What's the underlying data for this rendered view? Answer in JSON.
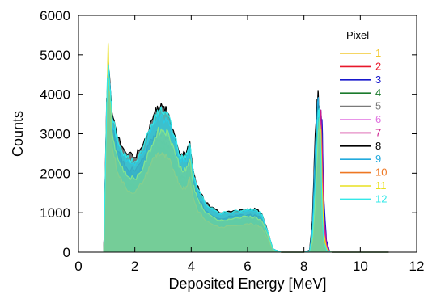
{
  "chart_data": {
    "type": "line",
    "title": "",
    "xlabel": "Deposited Energy [MeV]",
    "ylabel": "Counts",
    "xlim": [
      0,
      12
    ],
    "ylim": [
      0,
      6000
    ],
    "xticks": [
      0,
      2,
      4,
      6,
      8,
      10,
      12
    ],
    "yticks": [
      0,
      1000,
      2000,
      3000,
      4000,
      5000,
      6000
    ],
    "grid": false,
    "legend": {
      "title": "Pixel",
      "position": "top-right"
    },
    "x": [
      0.9,
      1.0,
      1.05,
      1.1,
      1.2,
      1.4,
      1.7,
      2.0,
      2.3,
      2.6,
      2.8,
      3.0,
      3.2,
      3.4,
      3.6,
      3.8,
      3.95,
      4.05,
      4.2,
      4.5,
      5.0,
      5.5,
      6.0,
      6.3,
      6.5,
      6.7,
      6.9,
      7.2,
      7.6,
      8.0,
      8.2,
      8.3,
      8.4,
      8.5,
      8.55,
      8.6,
      8.65,
      8.7,
      8.8,
      8.9,
      9.0,
      9.5,
      10.0,
      10.5,
      11.0
    ],
    "series": [
      {
        "name": "1",
        "color": "#f2c830",
        "values": [
          0,
          3000,
          5100,
          3800,
          2500,
          1800,
          1400,
          1300,
          1500,
          2000,
          2200,
          2150,
          2050,
          1800,
          1500,
          1350,
          1650,
          1300,
          1000,
          700,
          500,
          550,
          600,
          580,
          520,
          300,
          50,
          0,
          0,
          0,
          30,
          400,
          1800,
          3400,
          3100,
          2000,
          700,
          250,
          60,
          10,
          0,
          0,
          0,
          0,
          0
        ]
      },
      {
        "name": "2",
        "color": "#e8182a",
        "values": [
          0,
          3200,
          4700,
          4000,
          2700,
          2000,
          1600,
          1500,
          1800,
          2300,
          2500,
          2450,
          2350,
          2050,
          1700,
          1600,
          1900,
          1450,
          1100,
          800,
          600,
          650,
          700,
          680,
          600,
          350,
          60,
          0,
          0,
          0,
          20,
          200,
          1000,
          2600,
          3200,
          3500,
          2400,
          800,
          150,
          20,
          0,
          0,
          0,
          0,
          0
        ]
      },
      {
        "name": "3",
        "color": "#1818cc",
        "values": [
          0,
          3500,
          4900,
          4100,
          3000,
          2300,
          1900,
          1800,
          2100,
          2650,
          2850,
          2800,
          2700,
          2350,
          1950,
          1850,
          2150,
          1650,
          1300,
          950,
          750,
          800,
          850,
          830,
          740,
          420,
          70,
          0,
          0,
          0,
          20,
          200,
          900,
          2400,
          3100,
          3600,
          3200,
          1400,
          300,
          40,
          0,
          0,
          0,
          0,
          0
        ]
      },
      {
        "name": "4",
        "color": "#1a7a2c",
        "values": [
          0,
          3300,
          4500,
          3900,
          2800,
          2150,
          1750,
          1650,
          1950,
          2450,
          2650,
          2600,
          2500,
          2200,
          1800,
          1700,
          2000,
          1550,
          1200,
          870,
          680,
          730,
          780,
          760,
          680,
          390,
          60,
          0,
          0,
          0,
          40,
          500,
          2200,
          3900,
          3500,
          2200,
          800,
          250,
          50,
          10,
          0,
          0,
          0,
          0,
          0
        ]
      },
      {
        "name": "5",
        "color": "#7a7a7a",
        "values": [
          0,
          3400,
          4600,
          4000,
          2900,
          2250,
          1850,
          1750,
          2050,
          2550,
          2750,
          2700,
          2600,
          2280,
          1880,
          1780,
          2080,
          1600,
          1250,
          900,
          710,
          760,
          810,
          790,
          710,
          400,
          60,
          0,
          0,
          0,
          30,
          350,
          1500,
          3300,
          3700,
          2800,
          1100,
          300,
          60,
          10,
          0,
          0,
          0,
          0,
          0
        ]
      },
      {
        "name": "6",
        "color": "#e070e0",
        "values": [
          0,
          3600,
          4800,
          4200,
          3100,
          2450,
          2050,
          1950,
          2250,
          2750,
          2950,
          2900,
          2800,
          2450,
          2050,
          1950,
          2250,
          1750,
          1380,
          1000,
          800,
          850,
          900,
          880,
          790,
          450,
          70,
          0,
          0,
          0,
          20,
          250,
          1100,
          2700,
          3400,
          3300,
          2000,
          700,
          150,
          20,
          0,
          0,
          0,
          0,
          0
        ]
      },
      {
        "name": "7",
        "color": "#cc1a8c",
        "values": [
          0,
          3700,
          4700,
          4300,
          3200,
          2550,
          2150,
          2050,
          2350,
          2850,
          3050,
          3000,
          2900,
          2550,
          2150,
          2050,
          2350,
          1850,
          1450,
          1050,
          850,
          900,
          950,
          930,
          840,
          480,
          70,
          0,
          0,
          0,
          20,
          220,
          1000,
          2500,
          3200,
          3600,
          2600,
          1000,
          200,
          30,
          0,
          0,
          0,
          0,
          0
        ]
      },
      {
        "name": "8",
        "color": "#000000",
        "values": [
          0,
          3900,
          4600,
          4500,
          3500,
          2900,
          2500,
          2400,
          2750,
          3350,
          3700,
          3650,
          3500,
          3000,
          2500,
          2450,
          2800,
          2150,
          1700,
          1250,
          1000,
          1050,
          1100,
          1080,
          980,
          560,
          80,
          0,
          0,
          0,
          50,
          800,
          3000,
          4100,
          3200,
          1800,
          600,
          200,
          40,
          10,
          0,
          0,
          0,
          0,
          0
        ]
      },
      {
        "name": "9",
        "color": "#22aadd",
        "values": [
          0,
          3700,
          4500,
          4300,
          3300,
          2700,
          2300,
          2200,
          2550,
          3150,
          3450,
          3400,
          3300,
          2850,
          2350,
          2300,
          2650,
          2050,
          1620,
          1200,
          950,
          1000,
          1050,
          1030,
          930,
          530,
          80,
          0,
          0,
          0,
          40,
          600,
          2600,
          3900,
          3300,
          2100,
          700,
          220,
          40,
          10,
          0,
          0,
          0,
          0,
          0
        ]
      },
      {
        "name": "10",
        "color": "#ee7722",
        "values": [
          0,
          3100,
          4400,
          3850,
          2650,
          2000,
          1600,
          1500,
          1800,
          2300,
          2500,
          2450,
          2350,
          2050,
          1700,
          1600,
          1900,
          1450,
          1100,
          800,
          620,
          670,
          720,
          700,
          630,
          360,
          60,
          0,
          0,
          0,
          20,
          300,
          1400,
          3000,
          3300,
          2700,
          1200,
          350,
          70,
          10,
          0,
          0,
          0,
          0,
          0
        ]
      },
      {
        "name": "11",
        "color": "#e8e020",
        "values": [
          0,
          3600,
          5300,
          4200,
          3000,
          2350,
          1950,
          1850,
          2150,
          2700,
          3050,
          3100,
          3000,
          2600,
          2150,
          2050,
          2350,
          1800,
          1400,
          1000,
          800,
          850,
          900,
          880,
          790,
          450,
          70,
          0,
          0,
          0,
          20,
          250,
          1200,
          2900,
          3400,
          3100,
          1600,
          500,
          100,
          20,
          0,
          0,
          0,
          0,
          0
        ]
      },
      {
        "name": "12",
        "color": "#33e8e8",
        "values": [
          0,
          3800,
          4700,
          4400,
          3400,
          2800,
          2400,
          2300,
          2650,
          3250,
          3600,
          3550,
          3450,
          2950,
          2450,
          2400,
          2750,
          2100,
          1650,
          1230,
          980,
          1030,
          1080,
          1060,
          960,
          550,
          80,
          0,
          0,
          0,
          30,
          400,
          1700,
          3500,
          3600,
          2500,
          900,
          280,
          50,
          10,
          0,
          0,
          0,
          0,
          0
        ]
      }
    ]
  }
}
